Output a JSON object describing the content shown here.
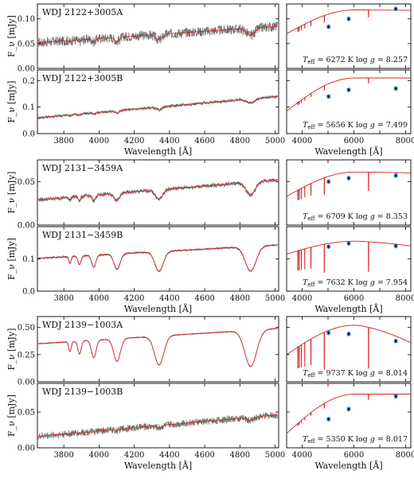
{
  "x_label_left": "Wavelength [Å]",
  "x_label_right": "Wavelength [Å]",
  "y_label": "F_ν [mJy]",
  "colors": {
    "observed": "#6e6e6e",
    "model": "#d62728",
    "photometry": "#1f77b4"
  },
  "chart_data": {
    "type": "line",
    "left_xlim": [
      3650,
      5020
    ],
    "left_xticks": [
      3800,
      4000,
      4200,
      4400,
      4600,
      4800,
      5000
    ],
    "right_xlim": [
      3400,
      8200
    ],
    "right_xticks": [
      4000,
      5000,
      6000,
      7000,
      8000
    ],
    "right_xtick_labels": [
      "4000",
      "",
      "6000",
      "",
      "8000"
    ],
    "balmer_lines": [
      3835,
      3889,
      3970,
      4102,
      4341,
      4861,
      6563
    ],
    "panels": [
      {
        "star": "WDJ 2122+3005A",
        "ylim": [
          0,
          0.13
        ],
        "yticks": [
          0.0,
          0.05,
          0.1
        ],
        "ytick_labels": [
          "0.00",
          "0.05",
          "0.10"
        ],
        "spectrum": {
          "start": 0.052,
          "end": 0.085,
          "noise": 0.01,
          "depth": 0.18
        },
        "model": {
          "start": 0.07,
          "peak": 0.118,
          "end": 0.117,
          "depth": 0.12
        },
        "photometry": [
          {
            "wave": 5020,
            "flux": 0.084
          },
          {
            "wave": 5800,
            "flux": 0.1
          },
          {
            "wave": 7620,
            "flux": 0.12
          }
        ],
        "teff": "6272",
        "logg": "8.257"
      },
      {
        "star": "WDJ 2122+3005B",
        "ylim": [
          0,
          0.24
        ],
        "yticks": [
          0.0,
          0.1,
          0.2
        ],
        "ytick_labels": [
          "0.0",
          "0.1",
          "0.2"
        ],
        "spectrum": {
          "start": 0.06,
          "end": 0.14,
          "noise": 0.006,
          "depth": 0.12
        },
        "model": {
          "start": 0.085,
          "peak": 0.21,
          "end": 0.21,
          "depth": 0.09
        },
        "photometry": [
          {
            "wave": 5020,
            "flux": 0.14
          },
          {
            "wave": 5800,
            "flux": 0.165
          },
          {
            "wave": 7620,
            "flux": 0.17
          }
        ],
        "teff": "5656",
        "logg": "7.499"
      },
      {
        "star": "WDJ 2131−3459A",
        "ylim": [
          0,
          0.075
        ],
        "yticks": [
          0.0,
          0.05
        ],
        "ytick_labels": [
          "0.00",
          "0.05"
        ],
        "spectrum": {
          "start": 0.029,
          "end": 0.052,
          "noise": 0.0025,
          "depth": 0.3
        },
        "model": {
          "start": 0.033,
          "peak": 0.061,
          "end": 0.06,
          "depth": 0.35
        },
        "photometry": [
          {
            "wave": 5020,
            "flux": 0.05
          },
          {
            "wave": 5800,
            "flux": 0.054
          },
          {
            "wave": 7620,
            "flux": 0.057
          }
        ],
        "teff": "6709",
        "logg": "8.353"
      },
      {
        "star": "WDJ 2131−3459B",
        "ylim": [
          0,
          0.2
        ],
        "yticks": [
          0.0,
          0.1
        ],
        "ytick_labels": [
          "0.0",
          "0.1"
        ],
        "spectrum": {
          "start": 0.102,
          "end": 0.143,
          "noise": 0.003,
          "depth": 0.55
        },
        "model": {
          "start": 0.115,
          "peak": 0.155,
          "end": 0.14,
          "depth": 0.6
        },
        "photometry": [
          {
            "wave": 5020,
            "flux": 0.138
          },
          {
            "wave": 5800,
            "flux": 0.148
          },
          {
            "wave": 7620,
            "flux": 0.14
          }
        ],
        "teff": "7632",
        "logg": "7.954"
      },
      {
        "star": "WDJ 2139−1003A",
        "ylim": [
          0,
          0.6
        ],
        "yticks": [
          0.0,
          0.25,
          0.5
        ],
        "ytick_labels": [
          "0.00",
          "0.25",
          "0.50"
        ],
        "spectrum": {
          "start": 0.35,
          "end": 0.49,
          "noise": 0.005,
          "depth": 0.7
        },
        "model": {
          "start": 0.25,
          "peak": 0.52,
          "end": 0.36,
          "depth": 0.75
        },
        "photometry": [
          {
            "wave": 5020,
            "flux": 0.45
          },
          {
            "wave": 5800,
            "flux": 0.44
          },
          {
            "wave": 7620,
            "flux": 0.375
          }
        ],
        "teff": "9737",
        "logg": "8.014"
      },
      {
        "star": "WDJ 2139−1003B",
        "ylim": [
          0,
          0.09
        ],
        "yticks": [
          0.0,
          0.05
        ],
        "ytick_labels": [
          "0.00",
          "0.05"
        ],
        "spectrum": {
          "start": 0.016,
          "end": 0.046,
          "noise": 0.005,
          "depth": 0.1
        },
        "model": {
          "start": 0.02,
          "peak": 0.075,
          "end": 0.075,
          "depth": 0.1
        },
        "photometry": [
          {
            "wave": 5020,
            "flux": 0.04
          },
          {
            "wave": 5800,
            "flux": 0.054
          },
          {
            "wave": 7620,
            "flux": 0.072
          }
        ],
        "teff": "5350",
        "logg": "8.017"
      }
    ]
  }
}
